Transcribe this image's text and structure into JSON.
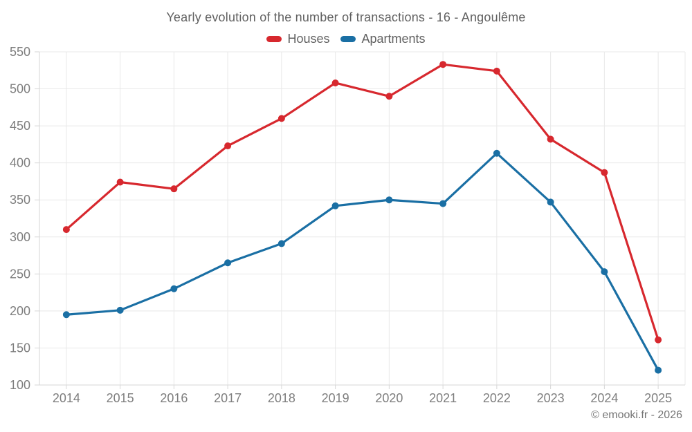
{
  "header": {
    "title": "Yearly evolution of the number of transactions - 16 - Angoulême"
  },
  "attribution": "© emooki.fr - 2026",
  "chart_data": {
    "type": "line",
    "title": "Yearly evolution of the number of transactions - 16 - Angoulême",
    "categories": [
      "2014",
      "2015",
      "2016",
      "2017",
      "2018",
      "2019",
      "2020",
      "2021",
      "2022",
      "2023",
      "2024",
      "2025"
    ],
    "series": [
      {
        "name": "Houses",
        "color": "#d7282e",
        "values": [
          310,
          374,
          365,
          423,
          460,
          508,
          490,
          533,
          524,
          432,
          387,
          161
        ]
      },
      {
        "name": "Apartments",
        "color": "#1a6fa4",
        "values": [
          195,
          201,
          230,
          265,
          291,
          342,
          350,
          345,
          413,
          347,
          253,
          120
        ]
      }
    ],
    "xlabel": "",
    "ylabel": "",
    "ylim": [
      100,
      550
    ],
    "yticks": [
      100,
      150,
      200,
      250,
      300,
      350,
      400,
      450,
      500,
      550
    ],
    "grid": true,
    "legend_position": "top",
    "marker": "circle"
  },
  "style": {
    "gridline_color": "#e8e8e8",
    "axis_color": "#d6d6d6",
    "tick_label_color": "#7e7e7e"
  }
}
